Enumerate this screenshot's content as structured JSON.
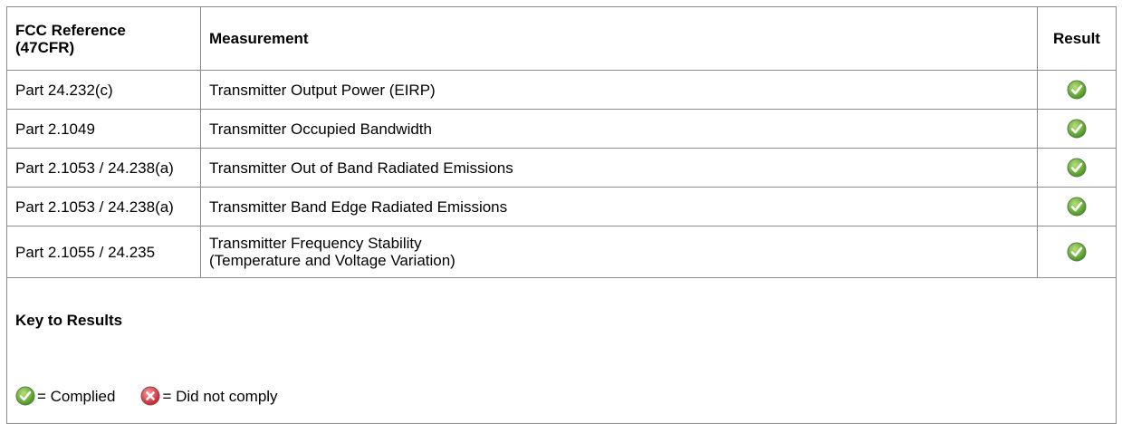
{
  "table": {
    "header": [
      "FCC Reference\n(47CFR)",
      "Measurement",
      "Result"
    ],
    "rows": [
      [
        "Part 24.232(c)",
        "Transmitter Output Power (EIRP)"
      ],
      [
        "Part 2.1049",
        "Transmitter Occupied Bandwidth"
      ],
      [
        "Part 2.1053 / 24.238(a)",
        "Transmitter Out of Band Radiated Emissions"
      ],
      [
        "Part 2.1053 / 24.238(a)",
        "Transmitter Band Edge Radiated Emissions"
      ],
      [
        "Part 2.1055 / 24.235",
        "Transmitter Frequency Stability\n(Temperature and Voltage Variation)"
      ]
    ]
  },
  "key": {
    "title": "Key to Results",
    "complied": "= Complied",
    "not_complied": "= Did not comply"
  }
}
